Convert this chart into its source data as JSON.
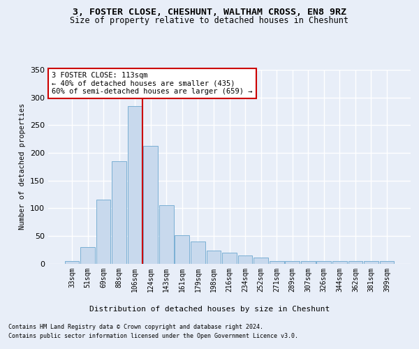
{
  "title1": "3, FOSTER CLOSE, CHESHUNT, WALTHAM CROSS, EN8 9RZ",
  "title2": "Size of property relative to detached houses in Cheshunt",
  "xlabel": "Distribution of detached houses by size in Cheshunt",
  "ylabel": "Number of detached properties",
  "categories": [
    "33sqm",
    "51sqm",
    "69sqm",
    "88sqm",
    "106sqm",
    "124sqm",
    "143sqm",
    "161sqm",
    "179sqm",
    "198sqm",
    "216sqm",
    "234sqm",
    "252sqm",
    "271sqm",
    "289sqm",
    "307sqm",
    "326sqm",
    "344sqm",
    "362sqm",
    "381sqm",
    "399sqm"
  ],
  "bar_heights": [
    5,
    30,
    116,
    185,
    285,
    212,
    105,
    51,
    40,
    23,
    19,
    15,
    11,
    4,
    4,
    4,
    4,
    4,
    4,
    4,
    4
  ],
  "bar_color": "#c8d9ed",
  "bar_edge_color": "#7aafd4",
  "vline_color": "#cc0000",
  "annotation_line1": "3 FOSTER CLOSE: 113sqm",
  "annotation_line2": "← 40% of detached houses are smaller (435)",
  "annotation_line3": "60% of semi-detached houses are larger (659) →",
  "annotation_box_color": "#ffffff",
  "annotation_box_edge": "#cc0000",
  "footnote1": "Contains HM Land Registry data © Crown copyright and database right 2024.",
  "footnote2": "Contains public sector information licensed under the Open Government Licence v3.0.",
  "bg_color": "#e8eef8",
  "plot_bg_color": "#e8eef8",
  "ylim": [
    0,
    350
  ],
  "yticks": [
    0,
    50,
    100,
    150,
    200,
    250,
    300,
    350
  ]
}
